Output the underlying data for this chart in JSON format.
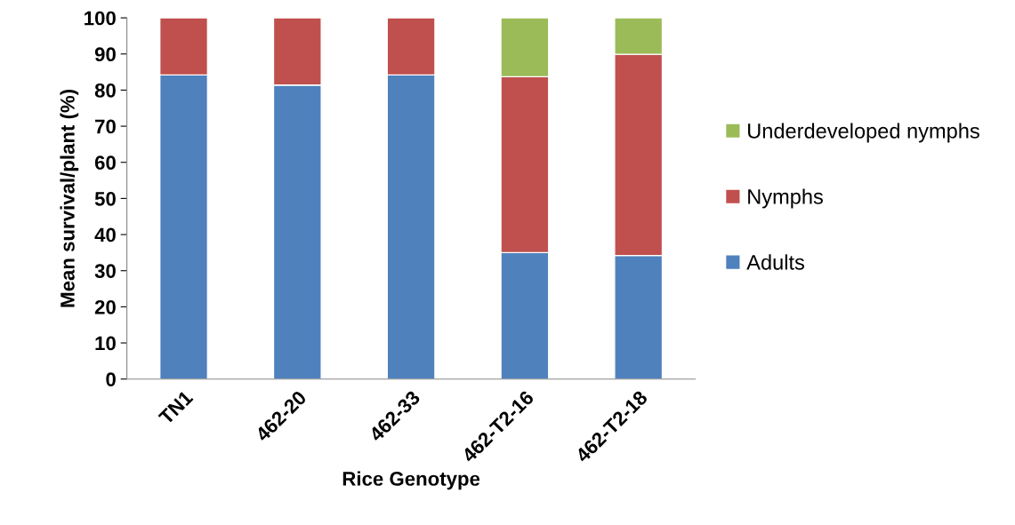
{
  "chart_data": {
    "type": "bar",
    "stacked": true,
    "xlabel": "Rice Genotype",
    "ylabel": "Mean survival/plant (%)",
    "categories": [
      "TN1",
      "462-20",
      "462-33",
      "462-T2-16",
      "462-T2-18"
    ],
    "series": [
      {
        "name": "Adults",
        "color": "#4f81bd",
        "values": [
          84.2,
          81.4,
          84.2,
          35.0,
          34.2
        ]
      },
      {
        "name": "Nymphs",
        "color": "#c0504d",
        "values": [
          15.8,
          18.6,
          15.8,
          48.7,
          55.7
        ]
      },
      {
        "name": "Underdeveloped nymphs",
        "color": "#9bbb59",
        "values": [
          null,
          null,
          null,
          16.3,
          10.1
        ]
      }
    ],
    "ylim": [
      0,
      100
    ],
    "yticks": [
      0,
      10,
      20,
      30,
      40,
      50,
      60,
      70,
      80,
      90,
      100
    ],
    "grid": false,
    "legend": "right"
  }
}
